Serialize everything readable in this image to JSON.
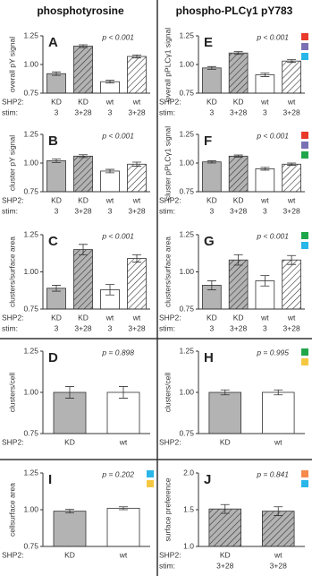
{
  "column_titles": [
    "phosphotyrosine",
    "phospho-PLCγ1 pY783"
  ],
  "chart_data": [
    {
      "type": "bar",
      "panel": "A",
      "annotation": "p < 0.001",
      "ylabel": "overall pY signal",
      "row_labels": [
        "SHP2:",
        "stim:"
      ],
      "categories": [
        "KD",
        "KD",
        "wt",
        "wt"
      ],
      "stim": [
        "3",
        "3+28",
        "3",
        "3+28"
      ],
      "values": [
        0.92,
        1.16,
        0.85,
        1.07
      ],
      "errors": [
        0.015,
        0.012,
        0.012,
        0.013
      ],
      "colors": [
        "#b3b3b3",
        "#b3b3b3",
        "#ffffff",
        "#ffffff"
      ],
      "hatched": [
        false,
        true,
        false,
        true
      ],
      "ylim": [
        0.75,
        1.25
      ],
      "yticks": [
        {
          "value": 0.75,
          "label": "0.75"
        },
        {
          "value": 1.0,
          "label": "1.00"
        },
        {
          "value": 1.25,
          "label": "1.25"
        }
      ]
    },
    {
      "type": "bar",
      "panel": "B",
      "annotation": "p < 0.001",
      "ylabel": "cluster pY signal",
      "row_labels": [
        "SHP2:",
        "stim:"
      ],
      "categories": [
        "KD",
        "KD",
        "wt",
        "wt"
      ],
      "stim": [
        "3",
        "3+28",
        "3",
        "3+28"
      ],
      "values": [
        1.02,
        1.06,
        0.93,
        0.99
      ],
      "errors": [
        0.015,
        0.012,
        0.015,
        0.018
      ],
      "colors": [
        "#b3b3b3",
        "#b3b3b3",
        "#ffffff",
        "#ffffff"
      ],
      "hatched": [
        false,
        true,
        false,
        true
      ],
      "ylim": [
        0.75,
        1.25
      ],
      "yticks": [
        {
          "value": 0.75,
          "label": "0.75"
        },
        {
          "value": 1.0,
          "label": "1.00"
        },
        {
          "value": 1.25,
          "label": "1.25"
        }
      ]
    },
    {
      "type": "bar",
      "panel": "C",
      "annotation": "p < 0.001",
      "ylabel": "clusters/surface area",
      "row_labels": [
        "SHP2:",
        "stim:"
      ],
      "categories": [
        "KD",
        "KD",
        "wt",
        "wt"
      ],
      "stim": [
        "3",
        "3+28",
        "3",
        "3+28"
      ],
      "values": [
        0.89,
        1.15,
        0.88,
        1.09
      ],
      "errors": [
        0.02,
        0.035,
        0.035,
        0.025
      ],
      "colors": [
        "#b3b3b3",
        "#b3b3b3",
        "#ffffff",
        "#ffffff"
      ],
      "hatched": [
        false,
        true,
        false,
        true
      ],
      "ylim": [
        0.75,
        1.25
      ],
      "yticks": [
        {
          "value": 0.75,
          "label": "0.75"
        },
        {
          "value": 1.0,
          "label": "1.00"
        },
        {
          "value": 1.25,
          "label": "1.25"
        }
      ]
    },
    {
      "type": "bar",
      "panel": "D",
      "annotation": "p = 0.898",
      "ylabel": "clusters/cell",
      "row_labels": [
        "SHP2:"
      ],
      "categories": [
        "KD",
        "wt"
      ],
      "values": [
        1.0,
        1.0
      ],
      "errors": [
        0.035,
        0.035
      ],
      "colors": [
        "#b3b3b3",
        "#ffffff"
      ],
      "hatched": [
        false,
        false
      ],
      "ylim": [
        0.75,
        1.25
      ],
      "yticks": [
        {
          "value": 0.75,
          "label": "0.75"
        },
        {
          "value": 1.0,
          "label": "1.00"
        },
        {
          "value": 1.25,
          "label": "1.25"
        }
      ]
    },
    {
      "type": "bar",
      "panel": "I",
      "annotation": "p = 0.202",
      "ylabel": "cellsurface area",
      "row_labels": [
        "SHP2:"
      ],
      "categories": [
        "KD",
        "wt"
      ],
      "values": [
        0.99,
        1.01
      ],
      "errors": [
        0.012,
        0.01
      ],
      "colors": [
        "#b3b3b3",
        "#ffffff"
      ],
      "hatched": [
        false,
        false
      ],
      "ylim": [
        0.75,
        1.25
      ],
      "yticks": [
        {
          "value": 0.75,
          "label": "0.75"
        },
        {
          "value": 1.0,
          "label": "1.00"
        },
        {
          "value": 1.25,
          "label": "1.25"
        }
      ],
      "markers": [
        "#29b6e8",
        "#f5c842"
      ]
    },
    {
      "type": "bar",
      "panel": "E",
      "annotation": "p < 0.001",
      "ylabel": "overall pPLCγ1 signal",
      "row_labels": [
        "SHP2:",
        "stim:"
      ],
      "categories": [
        "KD",
        "KD",
        "wt",
        "wt"
      ],
      "stim": [
        "3",
        "3+28",
        "3",
        "3+28"
      ],
      "values": [
        0.97,
        1.1,
        0.91,
        1.03
      ],
      "errors": [
        0.012,
        0.012,
        0.015,
        0.012
      ],
      "colors": [
        "#b3b3b3",
        "#b3b3b3",
        "#ffffff",
        "#ffffff"
      ],
      "hatched": [
        false,
        true,
        false,
        true
      ],
      "ylim": [
        0.75,
        1.25
      ],
      "yticks": [
        {
          "value": 0.75,
          "label": "0.75"
        },
        {
          "value": 1.0,
          "label": "1.00"
        },
        {
          "value": 1.25,
          "label": "1.25"
        }
      ],
      "markers": [
        "#e8392b",
        "#7a6fb5",
        "#29b6e8"
      ]
    },
    {
      "type": "bar",
      "panel": "F",
      "annotation": "p < 0.001",
      "ylabel": "cluster pPLCγ1 signal",
      "row_labels": [
        "SHP2:",
        "stim:"
      ],
      "categories": [
        "KD",
        "KD",
        "wt",
        "wt"
      ],
      "stim": [
        "3",
        "3+28",
        "3",
        "3+28"
      ],
      "values": [
        1.01,
        1.06,
        0.95,
        0.99
      ],
      "errors": [
        0.01,
        0.01,
        0.012,
        0.01
      ],
      "colors": [
        "#b3b3b3",
        "#b3b3b3",
        "#ffffff",
        "#ffffff"
      ],
      "hatched": [
        false,
        true,
        false,
        true
      ],
      "ylim": [
        0.75,
        1.25
      ],
      "yticks": [
        {
          "value": 0.75,
          "label": "0.75"
        },
        {
          "value": 1.0,
          "label": "1.00"
        },
        {
          "value": 1.25,
          "label": "1.25"
        }
      ],
      "markers": [
        "#e8392b",
        "#7a6fb5",
        "#1fa64a"
      ]
    },
    {
      "type": "bar",
      "panel": "G",
      "annotation": "p < 0.001",
      "ylabel": "clusters/surface area",
      "row_labels": [
        "SHP2:",
        "stim:"
      ],
      "categories": [
        "KD",
        "KD",
        "wt",
        "wt"
      ],
      "stim": [
        "3",
        "3+28",
        "3",
        "3+28"
      ],
      "values": [
        0.91,
        1.08,
        0.94,
        1.08
      ],
      "errors": [
        0.03,
        0.035,
        0.035,
        0.03
      ],
      "colors": [
        "#b3b3b3",
        "#b3b3b3",
        "#ffffff",
        "#ffffff"
      ],
      "hatched": [
        false,
        true,
        false,
        true
      ],
      "ylim": [
        0.75,
        1.25
      ],
      "yticks": [
        {
          "value": 0.75,
          "label": "0.75"
        },
        {
          "value": 1.0,
          "label": "1.00"
        },
        {
          "value": 1.25,
          "label": "1.25"
        }
      ],
      "markers": [
        "#1fa64a",
        "#29b6e8"
      ]
    },
    {
      "type": "bar",
      "panel": "H",
      "annotation": "p = 0.995",
      "ylabel": "clusters/cell",
      "row_labels": [
        "SHP2:"
      ],
      "categories": [
        "KD",
        "wt"
      ],
      "values": [
        1.0,
        1.0
      ],
      "errors": [
        0.015,
        0.015
      ],
      "colors": [
        "#b3b3b3",
        "#ffffff"
      ],
      "hatched": [
        false,
        false
      ],
      "ylim": [
        0.75,
        1.25
      ],
      "yticks": [
        {
          "value": 0.75,
          "label": "0.75"
        },
        {
          "value": 1.0,
          "label": "1.00"
        },
        {
          "value": 1.25,
          "label": "1.25"
        }
      ],
      "markers": [
        "#1fa64a",
        "#f5c842"
      ]
    },
    {
      "type": "bar",
      "panel": "J",
      "annotation": "p = 0.841",
      "ylabel": "surface preference",
      "row_labels": [
        "SHP2:",
        "stim:"
      ],
      "categories": [
        "KD",
        "wt"
      ],
      "stim": [
        "3+28",
        "3+28"
      ],
      "values": [
        1.51,
        1.48
      ],
      "errors": [
        0.06,
        0.06
      ],
      "colors": [
        "#b3b3b3",
        "#b3b3b3"
      ],
      "hatched": [
        true,
        true
      ],
      "ylim": [
        1.0,
        2.0
      ],
      "yticks": [
        {
          "value": 1.0,
          "label": "1.0"
        },
        {
          "value": 1.5,
          "label": "1.5"
        },
        {
          "value": 2.0,
          "label": "2.0"
        }
      ],
      "markers": [
        "#f58a4b",
        "#29b6e8"
      ]
    }
  ]
}
